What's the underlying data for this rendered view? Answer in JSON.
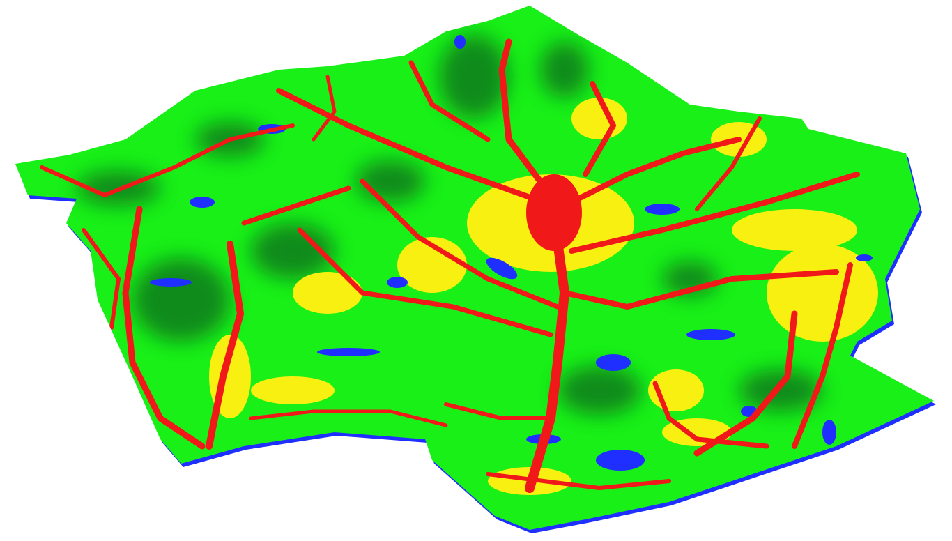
{
  "view": {
    "type": "3d-terrain-surface",
    "classes": [
      {
        "color": "#1f2fff"
      },
      {
        "color": "#18f018"
      },
      {
        "color": "#f8f010"
      },
      {
        "color": "#f01818"
      }
    ],
    "shading_color": "#0e6a1a",
    "background": "#ffffff"
  }
}
